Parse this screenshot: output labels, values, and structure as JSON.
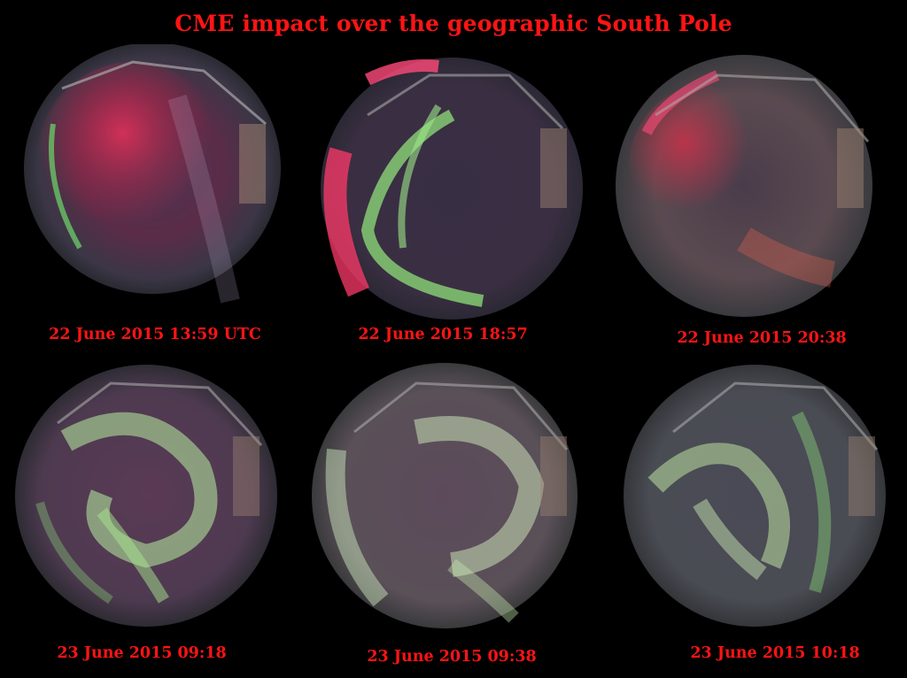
{
  "title": "CME impact over the geographic South Pole",
  "panels": [
    {
      "caption": "22 June 2015 13:59 UTC",
      "palette": "red"
    },
    {
      "caption": "22 June 2015 18:57",
      "palette": "green-arc"
    },
    {
      "caption": "22 June 2015 20:38",
      "palette": "red-diffuse"
    },
    {
      "caption": "23 June 2015 09:18",
      "palette": "green-corona"
    },
    {
      "caption": "23 June 2015 09:38",
      "palette": "green-corona"
    },
    {
      "caption": "23 June 2015 10:18",
      "palette": "green-corona"
    }
  ],
  "colors": {
    "text": "#ff1414",
    "background": "#000000",
    "aurora_green": "#8fe07a",
    "aurora_red": "#c2304e",
    "sky": "#3a2f42"
  }
}
